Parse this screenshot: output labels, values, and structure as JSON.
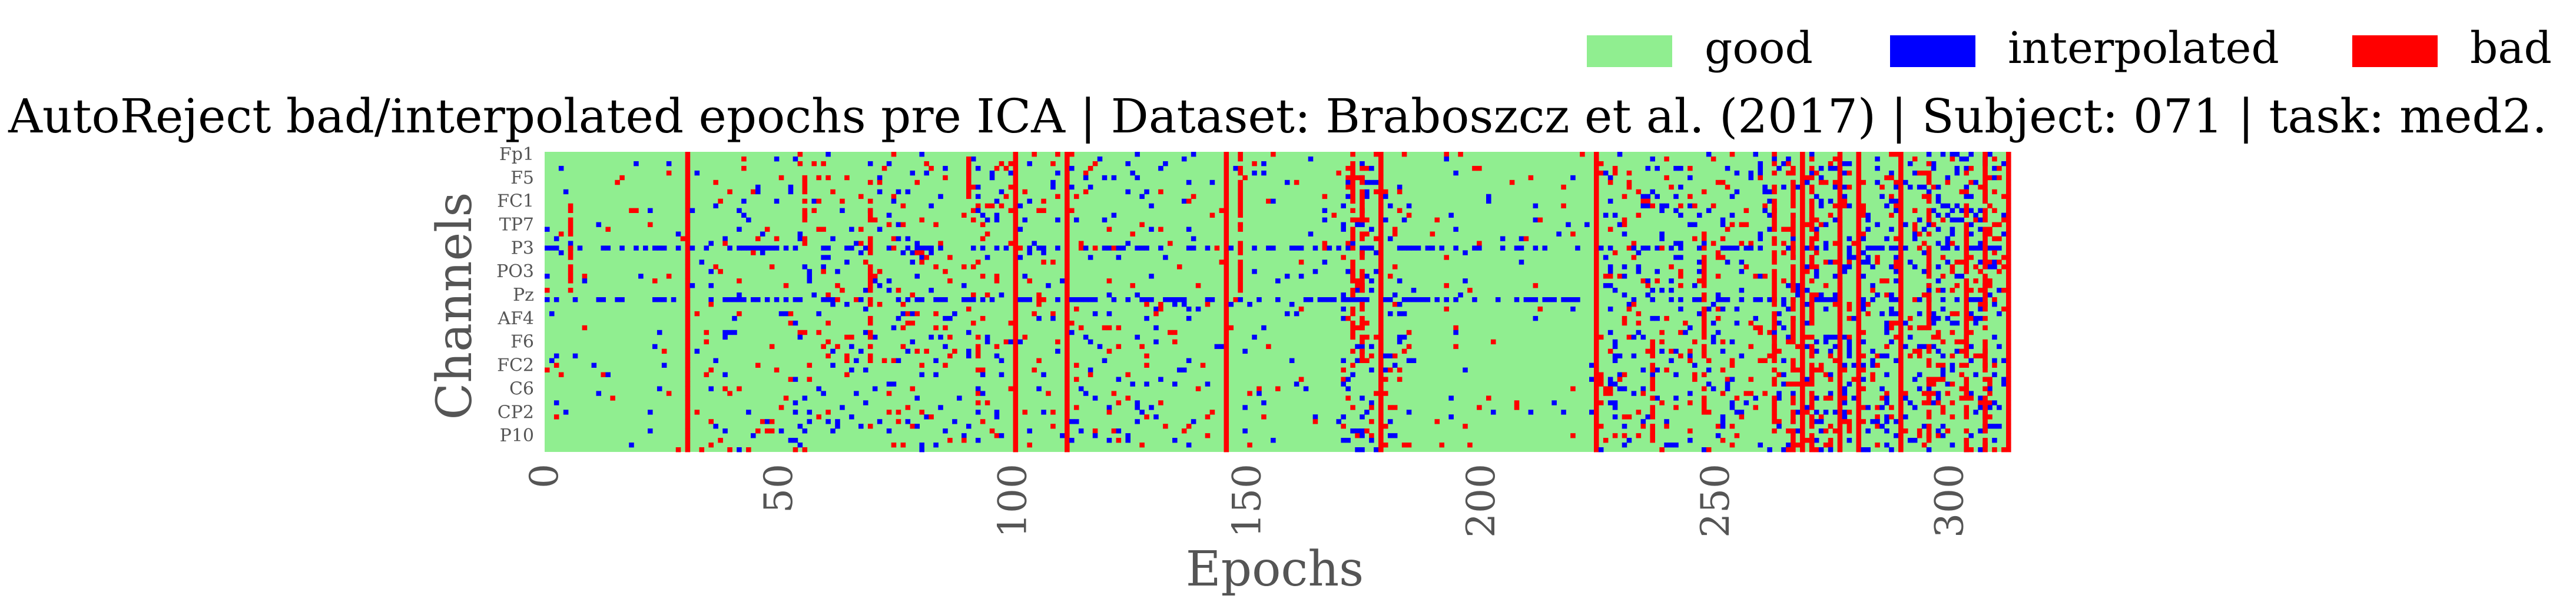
{
  "chart_data": {
    "type": "heatmap",
    "title": "AutoReject bad/interpolated epochs pre ICA | Dataset: Braboszcz et al. (2017) | Subject: 071 | task: med2.",
    "xlabel": "Epochs",
    "ylabel": "Channels",
    "x_ticks": [
      0,
      50,
      100,
      150,
      200,
      250,
      300
    ],
    "xlim": [
      0,
      313
    ],
    "n_epochs": 313,
    "n_channels": 64,
    "y_tick_labels": [
      "Fp1",
      "F5",
      "FC1",
      "TP7",
      "P3",
      "PO3",
      "Pz",
      "AF4",
      "F6",
      "FC2",
      "C6",
      "CP2",
      "P10"
    ],
    "y_tick_channel_index": [
      0,
      5,
      10,
      15,
      20,
      25,
      30,
      35,
      40,
      45,
      50,
      55,
      60
    ],
    "legend": [
      {
        "label": "good",
        "color": "#90ee90"
      },
      {
        "label": "interpolated",
        "color": "#0000ff"
      },
      {
        "label": "bad",
        "color": "#ff0000"
      }
    ],
    "legend_placement": "top-right",
    "bad_epochs": [
      30,
      100,
      111,
      145,
      178,
      224,
      268,
      276,
      280,
      289,
      312
    ],
    "channel_prone_to_interpolation": [
      20,
      31
    ],
    "grid": false
  }
}
